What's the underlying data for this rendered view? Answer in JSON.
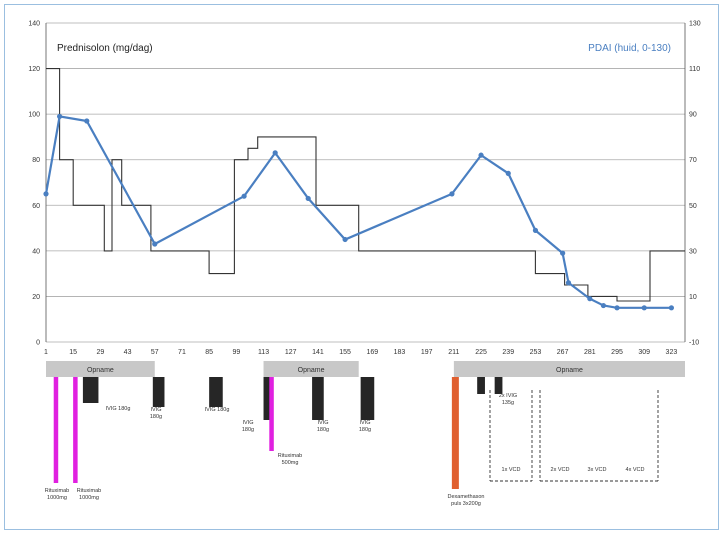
{
  "chart_data": {
    "type": "line",
    "title_left": "Prednisolon (mg/dag)",
    "title_right": "PDAI (huid, 0-130)",
    "xlim": [
      1,
      330
    ],
    "x_ticks": [
      1,
      15,
      29,
      43,
      57,
      71,
      85,
      99,
      113,
      127,
      141,
      155,
      169,
      183,
      197,
      211,
      225,
      239,
      253,
      267,
      281,
      295,
      309,
      323
    ],
    "y_left": {
      "lim": [
        0,
        140
      ],
      "ticks": [
        0,
        20,
        40,
        60,
        80,
        100,
        120,
        140
      ]
    },
    "y_right": {
      "lim": [
        -10,
        130
      ],
      "ticks": [
        -10,
        10,
        30,
        50,
        70,
        90,
        110,
        130
      ]
    },
    "grid": true,
    "series": [
      {
        "name": "Prednisolon (mg/dag)",
        "axis": "left",
        "style": "step",
        "color": "#333333",
        "x": [
          1,
          8,
          8,
          15,
          15,
          20,
          20,
          27,
          27,
          31,
          31,
          35,
          35,
          40,
          40,
          44,
          44,
          55,
          55,
          60,
          60,
          85,
          85,
          98,
          98,
          105,
          105,
          110,
          110,
          140,
          140,
          162,
          162,
          253,
          253,
          268,
          268,
          280,
          280,
          295,
          295,
          309,
          309,
          312,
          312,
          330
        ],
        "y": [
          120,
          120,
          80,
          80,
          60,
          60,
          60,
          60,
          60,
          60,
          40,
          40,
          80,
          80,
          60,
          60,
          60,
          60,
          40,
          40,
          40,
          40,
          30,
          30,
          80,
          80,
          85,
          85,
          90,
          90,
          60,
          60,
          40,
          40,
          30,
          30,
          25,
          25,
          20,
          20,
          18,
          18,
          18,
          18,
          40,
          40
        ]
      },
      {
        "name": "PDAI (huid, 0-130)",
        "axis": "right",
        "style": "line-markers",
        "color": "#4a7fc1",
        "x": [
          1,
          8,
          22,
          57,
          103,
          119,
          136,
          155,
          210,
          225,
          239,
          253,
          267,
          270,
          281,
          288,
          295,
          309,
          323
        ],
        "y": [
          55,
          89,
          87,
          33,
          54,
          73,
          53,
          35,
          55,
          72,
          64,
          39,
          29,
          16,
          9,
          6,
          5,
          5,
          5
        ]
      }
    ],
    "opname_label": "Opname",
    "opname_periods": [
      [
        1,
        57
      ],
      [
        113,
        162
      ],
      [
        211,
        330
      ]
    ],
    "ivig_bars": [
      {
        "x_start": 20,
        "x_end": 28,
        "bottom": 398,
        "label": "IVIG 180g"
      },
      {
        "x_start": 56,
        "x_end": 62,
        "bottom": 402,
        "label": "IVIG\n180g"
      },
      {
        "x_start": 85,
        "x_end": 92,
        "bottom": 402,
        "label": "IVIG 180g"
      },
      {
        "x_start": 113,
        "x_end": 118,
        "bottom": 415,
        "label": "IVIG\n180g"
      },
      {
        "x_start": 138,
        "x_end": 144,
        "bottom": 415,
        "label": "IVIG\n180g"
      },
      {
        "x_start": 163,
        "x_end": 170,
        "bottom": 415,
        "label": "IVIG\n180g"
      },
      {
        "x_start": 223,
        "x_end": 227,
        "bottom": 389,
        "label": "2x IVIG\n135g"
      },
      {
        "x_start": 232,
        "x_end": 236,
        "bottom": 389,
        "label": ""
      }
    ],
    "drug_bars": [
      {
        "x": 6,
        "color": "#e020e0",
        "label": "Rituximab\n1000mg"
      },
      {
        "x": 16,
        "color": "#e020e0",
        "label": "Rituximab\n1000mg"
      },
      {
        "x": 117,
        "color": "#e020e0",
        "label": "Rituximab\n500mg"
      },
      {
        "x": 211,
        "color": "#e06030",
        "label": "Dexamethason\npuls 3x200g"
      }
    ],
    "vcd_labels": [
      "1x VCD",
      "2x VCD",
      "3x VCD",
      "4x VCD"
    ]
  }
}
